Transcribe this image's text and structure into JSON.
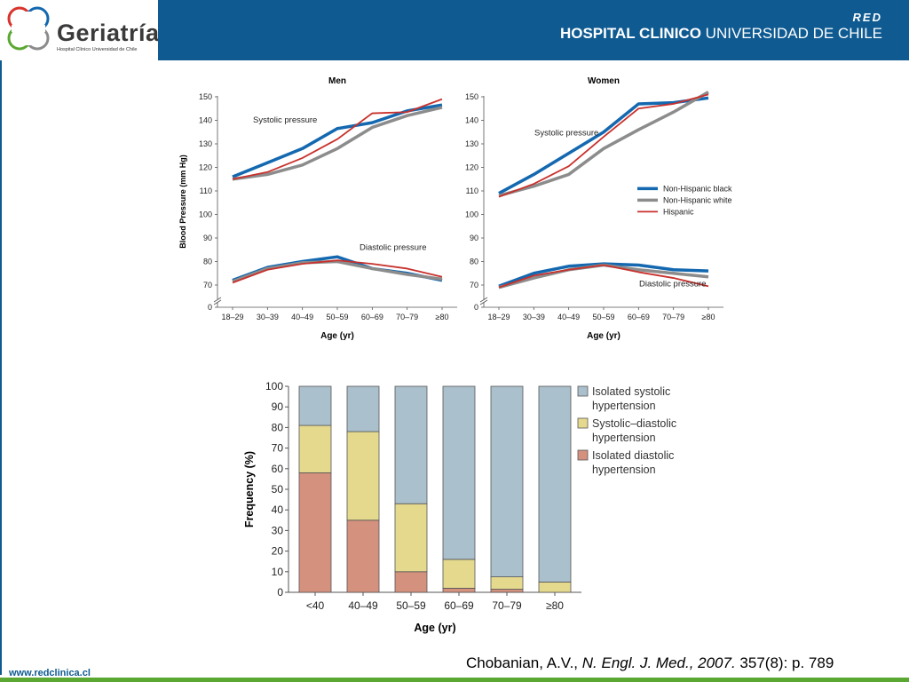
{
  "header": {
    "logo_text": "Geriatría",
    "logo_subtitle": "Hospital Clínico Universidad de Chile",
    "red_label": "RED",
    "hospital_bold": "HOSPITAL CLINICO",
    "hospital_rest": "UNIVERSIDAD DE CHILE"
  },
  "footer": {
    "url": "www.redclinica.cl",
    "citation_authors": "Chobanian, A.V.,",
    "citation_journal": "N. Engl. J. Med., 2007.",
    "citation_ref": "357(8): p. 789"
  },
  "colors": {
    "header_band": "#0e5a91",
    "footer_bar": "#5aa832",
    "series_black": "#1368b0",
    "series_white": "#8c8c8c",
    "series_hispanic": "#c8312c",
    "bar_isolated_systolic": "#aac0cc",
    "bar_systolic_diastolic": "#e5d98e",
    "bar_isolated_diastolic": "#d4917e"
  },
  "chart_data": [
    {
      "type": "line",
      "title": "Men",
      "xlabel": "Age (yr)",
      "ylabel": "Blood Pressure (mm Hg)",
      "categories": [
        "18–29",
        "30–39",
        "40–49",
        "50–59",
        "60–69",
        "70–79",
        "≥80"
      ],
      "yticks": [
        0,
        70,
        80,
        90,
        100,
        110,
        120,
        130,
        140,
        150
      ],
      "ylim": [
        65,
        150
      ],
      "axis_break": true,
      "annotations": [
        "Systolic pressure",
        "Diastolic pressure"
      ],
      "series": [
        {
          "name": "Non-Hispanic black",
          "systolic": [
            116,
            122,
            128,
            136.5,
            139,
            144,
            146.5
          ],
          "diastolic": [
            72,
            77.5,
            80,
            82,
            77,
            75,
            72
          ]
        },
        {
          "name": "Non-Hispanic white",
          "systolic": [
            115,
            117,
            121,
            128,
            137,
            142,
            145.5
          ],
          "diastolic": [
            71.5,
            77,
            79.5,
            80,
            77,
            74.5,
            72.5
          ]
        },
        {
          "name": "Hispanic",
          "systolic": [
            115,
            118,
            124,
            132,
            143,
            143.5,
            149
          ],
          "diastolic": [
            71,
            76.5,
            79,
            80.5,
            79,
            77,
            73.5
          ]
        }
      ]
    },
    {
      "type": "line",
      "title": "Women",
      "xlabel": "Age (yr)",
      "ylabel": "",
      "categories": [
        "18–29",
        "30–39",
        "40–49",
        "50–59",
        "60–69",
        "70–79",
        "≥80"
      ],
      "yticks": [
        0,
        70,
        80,
        90,
        100,
        110,
        120,
        130,
        140,
        150
      ],
      "ylim": [
        65,
        150
      ],
      "axis_break": true,
      "legend_position": "right-middle",
      "annotations": [
        "Systolic pressure",
        "Diastolic pressure"
      ],
      "series": [
        {
          "name": "Non-Hispanic black",
          "systolic": [
            109,
            117,
            126,
            135,
            147,
            147.5,
            149.5
          ],
          "diastolic": [
            69.5,
            75,
            78,
            79,
            78.5,
            76.5,
            76
          ]
        },
        {
          "name": "Non-Hispanic white",
          "systolic": [
            108,
            112,
            117,
            128,
            136,
            143.5,
            152
          ],
          "diastolic": [
            69,
            73,
            76.5,
            78.5,
            76.5,
            75,
            73.5
          ]
        },
        {
          "name": "Hispanic",
          "systolic": [
            107.5,
            113,
            120.5,
            133,
            145,
            147,
            151
          ],
          "diastolic": [
            69,
            74,
            76.5,
            78.5,
            75.5,
            73,
            69.5
          ]
        }
      ]
    },
    {
      "type": "bar",
      "stacked": true,
      "xlabel": "Age (yr)",
      "ylabel": "Frequency (%)",
      "ylim": [
        0,
        100
      ],
      "yticks": [
        0,
        10,
        20,
        30,
        40,
        50,
        60,
        70,
        80,
        90,
        100
      ],
      "categories": [
        "<40",
        "40–49",
        "50–59",
        "60–69",
        "70–79",
        "≥80"
      ],
      "legend_position": "right",
      "series": [
        {
          "name": "Isolated diastolic hypertension",
          "values": [
            58,
            35,
            10,
            2,
            1.5,
            0
          ]
        },
        {
          "name": "Systolic–diastolic hypertension",
          "values": [
            23,
            43,
            33,
            14,
            6,
            5
          ]
        },
        {
          "name": "Isolated systolic hypertension",
          "values": [
            19,
            22,
            57,
            84,
            92.5,
            95
          ]
        }
      ],
      "legend_labels": [
        [
          "Isolated systolic",
          "hypertension"
        ],
        [
          "Systolic–diastolic",
          "hypertension"
        ],
        [
          "Isolated diastolic",
          "hypertension"
        ]
      ]
    }
  ]
}
